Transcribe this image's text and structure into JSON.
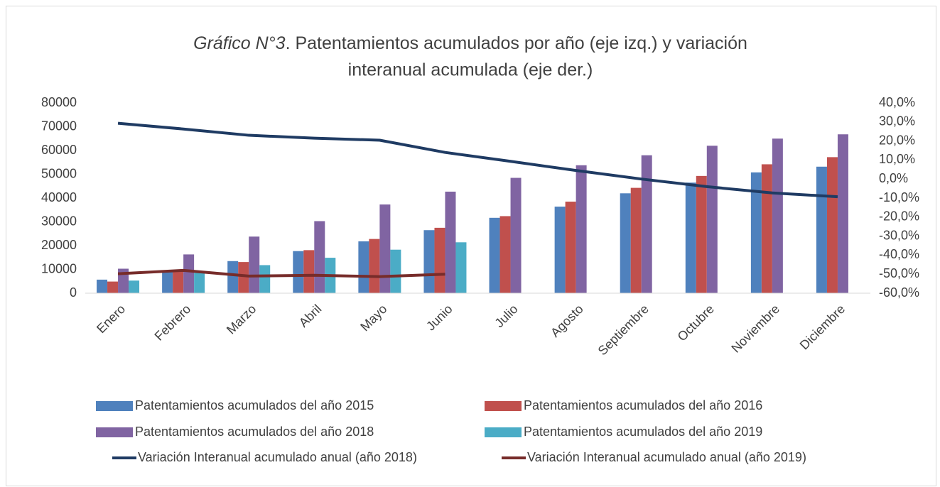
{
  "chart_data": {
    "type": "bar",
    "title_italic": "Gráfico N°3",
    "title": [
      ". Patentamientos acumulados por año (eje izq.) y variación",
      "interanual acumulada (eje der.)"
    ],
    "categories": [
      "Enero",
      "Febrero",
      "Marzo",
      "Abril",
      "Mayo",
      "Junio",
      "Julio",
      "Agosto",
      "Septiembre",
      "Octubre",
      "Noviembre",
      "Diciembre"
    ],
    "series": [
      {
        "name": "Patentamientos acumulados del año 2015",
        "color": "#4f81bd",
        "values": [
          5700,
          9000,
          13500,
          17700,
          21800,
          26500,
          31700,
          36400,
          42000,
          46500,
          50800,
          53200
        ]
      },
      {
        "name": "Patentamientos acumulados del año 2016",
        "color": "#c0504d",
        "values": [
          4900,
          9200,
          13100,
          18100,
          22800,
          27500,
          32400,
          38500,
          44300,
          49300,
          54200,
          57200
        ]
      },
      {
        "name": "Patentamientos acumulados del año 2018",
        "color": "#8064a2",
        "values": [
          10300,
          16300,
          23800,
          30300,
          37300,
          42700,
          48500,
          53800,
          58000,
          62000,
          65000,
          66800
        ]
      },
      {
        "name": "Patentamientos acumulados del año 2019",
        "color": "#4bacc6",
        "values": [
          5300,
          8600,
          11800,
          14900,
          18300,
          21400,
          null,
          null,
          null,
          null,
          null,
          null
        ]
      },
      {
        "name": "Variación Interanual acumulado anual (año 2018)",
        "color": "#1f3b63",
        "type": "line",
        "axis": "y2",
        "values": [
          29.3,
          26.3,
          23,
          21.5,
          20.4,
          14,
          9.3,
          4.5,
          0,
          -4,
          -7.3,
          -9.3
        ]
      },
      {
        "name": "Variación Interanual acumulado anual (año 2019)",
        "color": "#772c2a",
        "type": "line",
        "axis": "y2",
        "values": [
          -49.8,
          -48,
          -51,
          -50.6,
          -51.3,
          -50,
          null,
          null,
          null,
          null,
          null,
          null
        ]
      }
    ],
    "ylim": [
      0,
      80000
    ],
    "yticks": [
      0,
      10000,
      20000,
      30000,
      40000,
      50000,
      60000,
      70000,
      80000
    ],
    "y2lim": [
      -60,
      40
    ],
    "y2ticks": [
      {
        "value": -60,
        "label": "-60,0%"
      },
      {
        "value": -50,
        "label": "-50,0%"
      },
      {
        "value": -40,
        "label": "-40,0%"
      },
      {
        "value": -30,
        "label": "-30,0%"
      },
      {
        "value": -20,
        "label": "-20,0%"
      },
      {
        "value": -10,
        "label": "-10,0%"
      },
      {
        "value": 0,
        "label": "0,0%"
      },
      {
        "value": 10,
        "label": "10,0%"
      },
      {
        "value": 20,
        "label": "20,0%"
      },
      {
        "value": 30,
        "label": "30,0%"
      },
      {
        "value": 40,
        "label": "40,0%"
      }
    ],
    "grid": false,
    "legend": "bottom"
  }
}
